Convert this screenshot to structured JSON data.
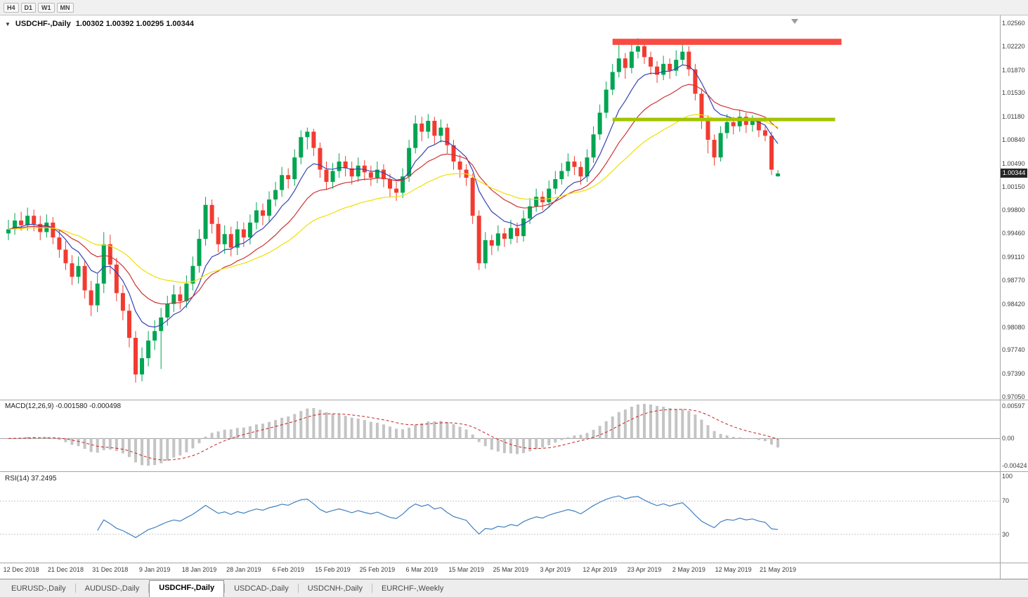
{
  "toolbar": {
    "timeframes": [
      "H4",
      "D1",
      "W1",
      "MN"
    ]
  },
  "icons": {
    "symbol_dropdown": "▼"
  },
  "chart_header": {
    "symbol": "USDCHF-,Daily",
    "ohlc": "1.00302 1.00392 1.00295 1.00344"
  },
  "current_price": "1.00344",
  "indicators": {
    "macd_label": "MACD(12,26,9) -0.001580 -0.000498",
    "rsi_label": "RSI(14) 37.2495",
    "macd_axis": [
      "0.00597",
      "0.00",
      "-0.00424"
    ],
    "rsi_axis": [
      "100",
      "70",
      "30"
    ]
  },
  "tabs": [
    {
      "label": "EURUSD-,Daily",
      "active": false
    },
    {
      "label": "AUDUSD-,Daily",
      "active": false
    },
    {
      "label": "USDCHF-,Daily",
      "active": true
    },
    {
      "label": "USDCAD-,Daily",
      "active": false
    },
    {
      "label": "USDCNH-,Daily",
      "active": false
    },
    {
      "label": "EURCHF-,Weekly",
      "active": false
    }
  ],
  "chart_data": {
    "type": "candlestick",
    "symbol": "USDCHF",
    "timeframe": "Daily",
    "title": "USDCHF-,Daily",
    "price_axis_ticks": [
      "1.02560",
      "1.02220",
      "1.01870",
      "1.01530",
      "1.01180",
      "1.00840",
      "1.00490",
      "1.00150",
      "0.99800",
      "0.99460",
      "0.99110",
      "0.98770",
      "0.98420",
      "0.98080",
      "0.97740",
      "0.97390",
      "0.97050"
    ],
    "time_labels": [
      "12 Dec 2018",
      "21 Dec 2018",
      "31 Dec 2018",
      "9 Jan 2019",
      "18 Jan 2019",
      "28 Jan 2019",
      "6 Feb 2019",
      "15 Feb 2019",
      "25 Feb 2019",
      "6 Mar 2019",
      "15 Mar 2019",
      "25 Mar 2019",
      "3 Apr 2019",
      "12 Apr 2019",
      "23 Apr 2019",
      "2 May 2019",
      "12 May 2019",
      "21 May 2019"
    ],
    "label_start_index": 2,
    "label_step": 7,
    "current_price": 1.00344,
    "colors": {
      "up": "#00a551",
      "down": "#f23b30",
      "macd_histogram": "#c4c4c4",
      "macd_signal": "#cc1f1f",
      "rsi_line": "#3f7fbf",
      "current_price_line": "#c0c0c0"
    },
    "moving_averages": [
      {
        "period": 8,
        "color": "#3742b4"
      },
      {
        "period": 17,
        "color": "#cd3333"
      },
      {
        "period": 34,
        "color": "#f0df00"
      }
    ],
    "levels": {
      "resistance_zone": {
        "from_index": 95,
        "to_index": 131,
        "top_price": 1.0233,
        "bottom_price": 1.0224,
        "color": "#fa4b42"
      },
      "support_line": {
        "from_index": 95,
        "to_index": 130,
        "price": 1.0114,
        "thickness": 5,
        "color": "#a3c400"
      }
    },
    "macd": {
      "fast": 12,
      "slow": 26,
      "signal": 9
    },
    "rsi": {
      "period": 14,
      "levels": [
        70,
        30
      ]
    },
    "ohlc": [
      [
        0.9946,
        0.9966,
        0.9936,
        0.9952
      ],
      [
        0.9952,
        0.9976,
        0.9944,
        0.9965
      ],
      [
        0.9965,
        0.9978,
        0.995,
        0.9958
      ],
      [
        0.9958,
        0.9984,
        0.995,
        0.9972
      ],
      [
        0.9972,
        0.9981,
        0.9949,
        0.996
      ],
      [
        0.996,
        0.9972,
        0.9936,
        0.9948
      ],
      [
        0.9948,
        0.9974,
        0.994,
        0.9962
      ],
      [
        0.9962,
        0.997,
        0.993,
        0.994
      ],
      [
        0.994,
        0.9952,
        0.991,
        0.9922
      ],
      [
        0.9922,
        0.9935,
        0.9892,
        0.9902
      ],
      [
        0.9902,
        0.9914,
        0.987,
        0.9882
      ],
      [
        0.9882,
        0.9912,
        0.9872,
        0.9898
      ],
      [
        0.9898,
        0.9906,
        0.985,
        0.9862
      ],
      [
        0.9862,
        0.9876,
        0.9824,
        0.984
      ],
      [
        0.984,
        0.9886,
        0.983,
        0.9872
      ],
      [
        0.9872,
        0.9948,
        0.9858,
        0.993
      ],
      [
        0.993,
        0.9944,
        0.9886,
        0.99
      ],
      [
        0.99,
        0.991,
        0.9846,
        0.9858
      ],
      [
        0.9858,
        0.987,
        0.9818,
        0.9832
      ],
      [
        0.9832,
        0.9842,
        0.9778,
        0.9792
      ],
      [
        0.9792,
        0.9802,
        0.9726,
        0.9738
      ],
      [
        0.9738,
        0.9778,
        0.9728,
        0.9762
      ],
      [
        0.9762,
        0.9802,
        0.975,
        0.9788
      ],
      [
        0.9788,
        0.9818,
        0.9774,
        0.9802
      ],
      [
        0.9802,
        0.9836,
        0.9746,
        0.9822
      ],
      [
        0.9822,
        0.9854,
        0.981,
        0.9842
      ],
      [
        0.9842,
        0.987,
        0.983,
        0.9856
      ],
      [
        0.9856,
        0.9868,
        0.9834,
        0.9846
      ],
      [
        0.9846,
        0.9884,
        0.9836,
        0.9872
      ],
      [
        0.9872,
        0.9912,
        0.9862,
        0.9898
      ],
      [
        0.9898,
        0.9952,
        0.9888,
        0.9938
      ],
      [
        0.9938,
        1.0,
        0.9928,
        0.9988
      ],
      [
        0.9988,
        0.9996,
        0.9946,
        0.996
      ],
      [
        0.996,
        0.997,
        0.9918,
        0.993
      ],
      [
        0.993,
        0.9958,
        0.9916,
        0.9945
      ],
      [
        0.9945,
        0.9956,
        0.9912,
        0.9925
      ],
      [
        0.9925,
        0.9964,
        0.9914,
        0.9952
      ],
      [
        0.9952,
        0.9962,
        0.9926,
        0.994
      ],
      [
        0.994,
        0.9974,
        0.993,
        0.9962
      ],
      [
        0.9962,
        0.9992,
        0.9952,
        0.998
      ],
      [
        0.998,
        0.999,
        0.9958,
        0.9972
      ],
      [
        0.9972,
        1.0008,
        0.9962,
        0.9996
      ],
      [
        0.9996,
        1.0022,
        0.9986,
        1.001
      ],
      [
        1.001,
        1.0044,
        1.0,
        1.0032
      ],
      [
        1.0032,
        1.0042,
        1.0012,
        1.0026
      ],
      [
        1.0026,
        1.007,
        1.0016,
        1.0058
      ],
      [
        1.0058,
        1.0098,
        1.0048,
        1.0088
      ],
      [
        1.0088,
        1.0102,
        1.007,
        1.0096
      ],
      [
        1.0096,
        1.01,
        1.006,
        1.0072
      ],
      [
        1.0072,
        1.008,
        1.0028,
        1.004
      ],
      [
        1.004,
        1.0052,
        1.001,
        1.0022
      ],
      [
        1.0022,
        1.005,
        1.0012,
        1.0038
      ],
      [
        1.0038,
        1.0064,
        1.0028,
        1.0052
      ],
      [
        1.0052,
        1.006,
        1.003,
        1.0042
      ],
      [
        1.0042,
        1.0052,
        1.0018,
        1.003
      ],
      [
        1.003,
        1.0058,
        1.0022,
        1.0046
      ],
      [
        1.0046,
        1.0054,
        1.0024,
        1.0036
      ],
      [
        1.0036,
        1.0046,
        1.0016,
        1.0028
      ],
      [
        1.0028,
        1.0052,
        1.002,
        1.004
      ],
      [
        1.004,
        1.0048,
        1.0014,
        1.0026
      ],
      [
        1.0026,
        1.0034,
        1.0,
        1.0012
      ],
      [
        1.0012,
        1.0022,
        0.9994,
        1.0006
      ],
      [
        1.0006,
        1.0042,
        0.9998,
        1.003
      ],
      [
        1.003,
        1.0084,
        1.0022,
        1.0072
      ],
      [
        1.0072,
        1.012,
        1.0064,
        1.0108
      ],
      [
        1.0108,
        1.0118,
        1.0082,
        1.0096
      ],
      [
        1.0096,
        1.0122,
        1.0086,
        1.0112
      ],
      [
        1.0112,
        1.0118,
        1.0078,
        1.009
      ],
      [
        1.009,
        1.0114,
        1.008,
        1.0102
      ],
      [
        1.0102,
        1.0108,
        1.0064,
        1.0076
      ],
      [
        1.0076,
        1.0084,
        1.004,
        1.0052
      ],
      [
        1.0052,
        1.0062,
        1.0028,
        1.004
      ],
      [
        1.004,
        1.0048,
        1.0016,
        1.0028
      ],
      [
        1.0028,
        1.0034,
        0.996,
        0.9972
      ],
      [
        0.9972,
        0.998,
        0.9892,
        0.9902
      ],
      [
        0.9902,
        0.9948,
        0.9894,
        0.9936
      ],
      [
        0.9936,
        0.9944,
        0.9914,
        0.9928
      ],
      [
        0.9928,
        0.9958,
        0.992,
        0.9946
      ],
      [
        0.9946,
        0.9954,
        0.9926,
        0.9938
      ],
      [
        0.9938,
        0.9966,
        0.993,
        0.9954
      ],
      [
        0.9954,
        0.9962,
        0.9932,
        0.9942
      ],
      [
        0.9942,
        0.998,
        0.9934,
        0.9968
      ],
      [
        0.9968,
        0.9998,
        0.996,
        0.9986
      ],
      [
        0.9986,
        1.0012,
        0.9978,
        1.0
      ],
      [
        1.0,
        1.0008,
        0.998,
        0.9992
      ],
      [
        0.9992,
        1.0024,
        0.9984,
        1.0012
      ],
      [
        1.0012,
        1.0038,
        1.0004,
        1.0026
      ],
      [
        1.0026,
        1.005,
        1.0018,
        1.0038
      ],
      [
        1.0038,
        1.0064,
        1.003,
        1.0052
      ],
      [
        1.0052,
        1.006,
        1.0032,
        1.0044
      ],
      [
        1.0044,
        1.0052,
        1.0018,
        1.003
      ],
      [
        1.003,
        1.007,
        1.0022,
        1.0058
      ],
      [
        1.0058,
        1.0104,
        1.005,
        1.0092
      ],
      [
        1.0092,
        1.0136,
        1.0084,
        1.0124
      ],
      [
        1.0124,
        1.017,
        1.0116,
        1.0158
      ],
      [
        1.0158,
        1.0196,
        1.015,
        1.0184
      ],
      [
        1.0184,
        1.0226,
        1.0176,
        1.0204
      ],
      [
        1.0204,
        1.0212,
        1.0174,
        1.019
      ],
      [
        1.019,
        1.023,
        1.0182,
        1.0214
      ],
      [
        1.0214,
        1.0234,
        1.0204,
        1.0222
      ],
      [
        1.0222,
        1.0228,
        1.0196,
        1.0206
      ],
      [
        1.0206,
        1.0214,
        1.018,
        1.0192
      ],
      [
        1.0192,
        1.02,
        1.0168,
        1.018
      ],
      [
        1.018,
        1.0208,
        1.0172,
        1.0196
      ],
      [
        1.0196,
        1.0204,
        1.0174,
        1.0186
      ],
      [
        1.0186,
        1.0216,
        1.0178,
        1.0202
      ],
      [
        1.0202,
        1.0232,
        1.0194,
        1.0214
      ],
      [
        1.0214,
        1.0222,
        1.0178,
        1.0188
      ],
      [
        1.0188,
        1.0196,
        1.0142,
        1.0152
      ],
      [
        1.0152,
        1.016,
        1.01,
        1.0112
      ],
      [
        1.0112,
        1.012,
        1.0064,
        1.0084
      ],
      [
        1.0084,
        1.0092,
        1.0046,
        1.0058
      ],
      [
        1.0058,
        1.0104,
        1.0052,
        1.0094
      ],
      [
        1.0094,
        1.0122,
        1.0086,
        1.011
      ],
      [
        1.011,
        1.0118,
        1.0092,
        1.0104
      ],
      [
        1.0104,
        1.0128,
        1.0096,
        1.0118
      ],
      [
        1.0118,
        1.0124,
        1.0094,
        1.0106
      ],
      [
        1.0106,
        1.012,
        1.0096,
        1.0112
      ],
      [
        1.0112,
        1.0116,
        1.0088,
        1.0098
      ],
      [
        1.0098,
        1.0104,
        1.0082,
        1.009
      ],
      [
        1.009,
        1.0096,
        1.0032,
        1.004
      ],
      [
        1.00302,
        1.00392,
        1.00295,
        1.00344
      ]
    ]
  }
}
